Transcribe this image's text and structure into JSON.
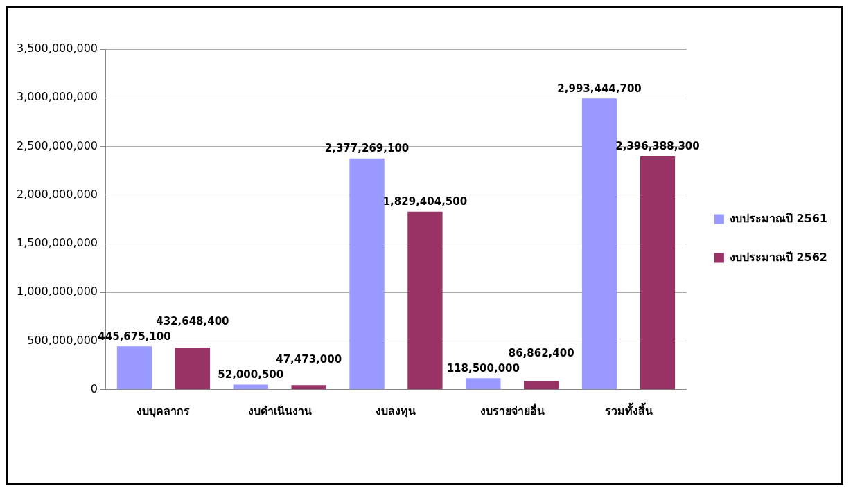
{
  "chart_data": {
    "type": "bar",
    "categories": [
      "งบบุคลากร",
      "งบดำเนินงาน",
      "งบลงทุน",
      "งบรายจ่ายอื่น",
      "รวมทั้งสิ้น"
    ],
    "series": [
      {
        "name": "งบประมาณปี 2561",
        "color": "#9999ff",
        "values": [
          445675100,
          52000500,
          2377269100,
          118500000,
          2993444700
        ],
        "value_labels": [
          "445,675,100",
          "52,000,500",
          "2,377,269,100",
          "118,500,000",
          "2,993,444,700"
        ]
      },
      {
        "name": "งบประมาณปี 2562",
        "color": "#993366",
        "values": [
          432648400,
          47473000,
          1829404500,
          86862400,
          2396388300
        ],
        "value_labels": [
          "432,648,400",
          "47,473,000",
          "1,829,404,500",
          "86,862,400",
          "2,396,388,300"
        ]
      }
    ],
    "ylim": [
      0,
      3500000000
    ],
    "yticks": [
      {
        "value": 0,
        "label": "0"
      },
      {
        "value": 500000000,
        "label": "500,000,000"
      },
      {
        "value": 1000000000,
        "label": "1,000,000,000"
      },
      {
        "value": 1500000000,
        "label": "1,500,000,000"
      },
      {
        "value": 2000000000,
        "label": "2,000,000,000"
      },
      {
        "value": 2500000000,
        "label": "2,500,000,000"
      },
      {
        "value": 3000000000,
        "label": "3,000,000,000"
      },
      {
        "value": 3500000000,
        "label": "3,500,000,000"
      }
    ],
    "grid": "y",
    "legend": "right"
  }
}
